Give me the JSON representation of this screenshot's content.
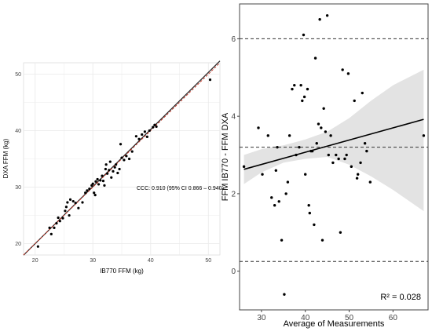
{
  "colors": {
    "line_identity": "#c0392b",
    "line_fit": "#000000",
    "ci_band": "#e3e3e3",
    "points": "#000000",
    "grid": "#ebebeb",
    "panel_border": "#444444"
  },
  "chart_data": [
    {
      "type": "scatter",
      "xlabel": "IB770 FFM (kg)",
      "ylabel": "DXA FFM (kg)",
      "xlim": [
        18,
        52
      ],
      "ylim": [
        18,
        52
      ],
      "xticks": [
        20,
        30,
        40,
        50
      ],
      "yticks": [
        20,
        30,
        40,
        50
      ],
      "grid": true,
      "identity_line": {
        "style": "dashed",
        "color": "red"
      },
      "fit_line": {
        "intercept": -0.2,
        "slope": 1.01
      },
      "annotation": "CCC: 0.910 (95% CI 0.866 – 0.940)",
      "points": [
        [
          20.5,
          19.5
        ],
        [
          22.5,
          22.8
        ],
        [
          22.8,
          21.7
        ],
        [
          23.3,
          22.8
        ],
        [
          23.7,
          23.6
        ],
        [
          24.0,
          24.6
        ],
        [
          24.3,
          24.0
        ],
        [
          24.8,
          24.5
        ],
        [
          25.2,
          25.8
        ],
        [
          25.4,
          26.5
        ],
        [
          25.6,
          27.3
        ],
        [
          25.9,
          25.0
        ],
        [
          26.1,
          27.8
        ],
        [
          26.6,
          27.5
        ],
        [
          27.0,
          27.2
        ],
        [
          27.5,
          26.3
        ],
        [
          28.2,
          27.3
        ],
        [
          28.7,
          29.0
        ],
        [
          29.0,
          29.4
        ],
        [
          29.4,
          29.7
        ],
        [
          29.8,
          30.3
        ],
        [
          30.0,
          30.6
        ],
        [
          30.2,
          29.0
        ],
        [
          30.4,
          28.6
        ],
        [
          30.5,
          31.0
        ],
        [
          30.8,
          31.4
        ],
        [
          31.0,
          30.5
        ],
        [
          31.3,
          31.2
        ],
        [
          31.6,
          32.0
        ],
        [
          31.8,
          31.1
        ],
        [
          32.0,
          30.3
        ],
        [
          32.2,
          33.2
        ],
        [
          32.3,
          34.0
        ],
        [
          32.5,
          32.4
        ],
        [
          32.8,
          33.0
        ],
        [
          33.0,
          34.5
        ],
        [
          33.2,
          31.7
        ],
        [
          33.5,
          32.8
        ],
        [
          33.8,
          33.5
        ],
        [
          34.0,
          34.0
        ],
        [
          34.3,
          32.5
        ],
        [
          34.6,
          33.2
        ],
        [
          34.8,
          37.6
        ],
        [
          35.0,
          35.2
        ],
        [
          35.4,
          34.8
        ],
        [
          35.8,
          35.5
        ],
        [
          36.3,
          35.0
        ],
        [
          36.8,
          36.3
        ],
        [
          37.5,
          39.0
        ],
        [
          38.0,
          38.5
        ],
        [
          38.5,
          39.3
        ],
        [
          39.0,
          39.8
        ],
        [
          39.4,
          38.9
        ],
        [
          39.8,
          40.0
        ],
        [
          40.4,
          40.6
        ],
        [
          40.7,
          41.0
        ],
        [
          41.0,
          40.7
        ],
        [
          50.3,
          49.0
        ]
      ]
    },
    {
      "type": "scatter",
      "xlabel": "Average of Measurements",
      "ylabel": "FFM IB770 - FFM DXA",
      "xlim": [
        25,
        68
      ],
      "ylim": [
        -1.0,
        6.9
      ],
      "xticks": [
        30,
        40,
        50,
        60
      ],
      "yticks": [
        0,
        2,
        4,
        6
      ],
      "grid": false,
      "hlines": [
        6.0,
        3.2,
        0.25
      ],
      "fit_line": {
        "x": [
          26,
          67
        ],
        "y": [
          2.63,
          3.92
        ]
      },
      "ci_band": {
        "x": [
          26,
          30,
          35,
          40,
          45,
          50,
          55,
          60,
          67
        ],
        "lower": [
          2.25,
          2.55,
          2.8,
          2.9,
          2.95,
          2.75,
          2.45,
          2.1,
          1.55
        ],
        "upper": [
          3.0,
          3.15,
          3.25,
          3.4,
          3.6,
          3.95,
          4.4,
          4.8,
          5.2
        ]
      },
      "annotation": "R² = 0.028",
      "points": [
        [
          26.0,
          2.7
        ],
        [
          29.3,
          3.7
        ],
        [
          30.2,
          2.5
        ],
        [
          31.5,
          3.5
        ],
        [
          32.3,
          1.9
        ],
        [
          33.0,
          1.7
        ],
        [
          33.3,
          2.6
        ],
        [
          33.6,
          3.2
        ],
        [
          34.0,
          1.8
        ],
        [
          34.6,
          0.8
        ],
        [
          35.2,
          -0.6
        ],
        [
          35.6,
          2.0
        ],
        [
          36.0,
          2.3
        ],
        [
          36.4,
          3.5
        ],
        [
          37.0,
          4.7
        ],
        [
          37.5,
          4.8
        ],
        [
          37.9,
          3.0
        ],
        [
          38.6,
          3.2
        ],
        [
          39.0,
          4.8
        ],
        [
          39.3,
          4.4
        ],
        [
          39.6,
          6.1
        ],
        [
          39.8,
          4.5
        ],
        [
          40.0,
          2.5
        ],
        [
          40.5,
          4.7
        ],
        [
          40.8,
          1.7
        ],
        [
          41.0,
          1.5
        ],
        [
          41.3,
          3.1
        ],
        [
          41.6,
          3.1
        ],
        [
          42.0,
          1.2
        ],
        [
          42.3,
          5.5
        ],
        [
          42.6,
          3.3
        ],
        [
          43.0,
          3.8
        ],
        [
          43.3,
          6.5
        ],
        [
          43.6,
          3.7
        ],
        [
          43.9,
          0.8
        ],
        [
          44.2,
          4.2
        ],
        [
          44.6,
          3.6
        ],
        [
          45.0,
          6.6
        ],
        [
          45.3,
          3.0
        ],
        [
          45.8,
          3.5
        ],
        [
          46.3,
          2.8
        ],
        [
          47.0,
          3.0
        ],
        [
          47.6,
          2.9
        ],
        [
          48.0,
          1.0
        ],
        [
          48.5,
          5.2
        ],
        [
          49.0,
          2.9
        ],
        [
          49.4,
          3.0
        ],
        [
          49.8,
          5.1
        ],
        [
          50.5,
          2.7
        ],
        [
          51.2,
          4.4
        ],
        [
          51.8,
          2.4
        ],
        [
          52.0,
          2.5
        ],
        [
          52.6,
          2.8
        ],
        [
          53.0,
          4.6
        ],
        [
          53.6,
          3.3
        ],
        [
          54.0,
          3.1
        ],
        [
          54.8,
          2.3
        ],
        [
          67.0,
          3.5
        ]
      ]
    }
  ]
}
